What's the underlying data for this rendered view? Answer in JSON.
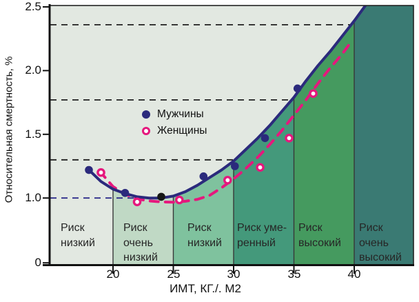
{
  "chart_data": {
    "type": "scatter",
    "title": "",
    "ylabel": "Относительная смертность, %",
    "xlabel": "ИМТ, КГ./. М2",
    "background_color": "#e2e8e1",
    "ylim": [
      0,
      2.5
    ],
    "xlim": [
      14.7,
      44.9
    ],
    "y_axis_break_below": 1.0,
    "y_ticks": [
      {
        "label": "2.5",
        "value": 2.5
      },
      {
        "label": "2.0",
        "value": 2.0
      },
      {
        "label": "1.5",
        "value": 1.5
      },
      {
        "label": "1.0",
        "value": 1.0
      },
      {
        "label": "0",
        "value": 0
      }
    ],
    "x_ticks": [
      {
        "label": "20",
        "value": 20
      },
      {
        "label": "25",
        "value": 25
      },
      {
        "label": "30",
        "value": 30
      },
      {
        "label": "35",
        "value": 35
      },
      {
        "label": "40",
        "value": 40
      }
    ],
    "dashed_gridlines": [
      {
        "value": 2.36,
        "color": "#1f1f1f"
      },
      {
        "value": 1.77,
        "color": "#1f1f1f"
      },
      {
        "value": 1.3,
        "color": "#1f1f1f"
      },
      {
        "value": 1.0,
        "color": "#2c2b8a"
      }
    ],
    "legend": [
      {
        "label": "Мужчины",
        "marker": "filled-circle"
      },
      {
        "label": "Женщины",
        "marker": "open-circle"
      }
    ],
    "series": [
      {
        "name": "Мужчины",
        "color": "#2b2a7c",
        "line_style": "solid",
        "marker": "filled-circle",
        "points": [
          [
            18,
            1.22
          ],
          [
            21,
            1.04
          ],
          [
            24,
            1.01
          ],
          [
            27.5,
            1.17
          ],
          [
            30.1,
            1.25
          ],
          [
            32.6,
            1.47
          ],
          [
            35.3,
            1.86
          ]
        ],
        "point_colors": {
          "2": "#161616"
        },
        "curve": [
          [
            17.9,
            1.23
          ],
          [
            19,
            1.13
          ],
          [
            20,
            1.07
          ],
          [
            21,
            1.035
          ],
          [
            22,
            1.01
          ],
          [
            23,
            1.0
          ],
          [
            24,
            1.0
          ],
          [
            25,
            1.015
          ],
          [
            26,
            1.05
          ],
          [
            27,
            1.1
          ],
          [
            28,
            1.16
          ],
          [
            29,
            1.22
          ],
          [
            30,
            1.29
          ],
          [
            31,
            1.38
          ],
          [
            32,
            1.47
          ],
          [
            33,
            1.57
          ],
          [
            34,
            1.68
          ],
          [
            35,
            1.79
          ],
          [
            36,
            1.92
          ],
          [
            37,
            2.04
          ],
          [
            38,
            2.15
          ],
          [
            39,
            2.27
          ],
          [
            40,
            2.39
          ],
          [
            41,
            2.52
          ]
        ]
      },
      {
        "name": "Женщины",
        "color": "#e5187d",
        "line_style": "dashed",
        "marker": "open-circle",
        "points": [
          [
            19,
            1.2
          ],
          [
            22,
            0.94
          ],
          [
            25.5,
            0.97
          ],
          [
            29.5,
            1.14
          ],
          [
            32.2,
            1.24
          ],
          [
            34.6,
            1.47
          ],
          [
            36.6,
            1.82
          ]
        ],
        "curve": [
          [
            18.9,
            1.21
          ],
          [
            20,
            1.09
          ],
          [
            21,
            1.03
          ],
          [
            22,
            0.985
          ],
          [
            23,
            0.955
          ],
          [
            24,
            0.94
          ],
          [
            25,
            0.935
          ],
          [
            26,
            0.95
          ],
          [
            27,
            0.98
          ],
          [
            28,
            1.02
          ],
          [
            29,
            1.08
          ],
          [
            30,
            1.15
          ],
          [
            31,
            1.23
          ],
          [
            32,
            1.32
          ],
          [
            33,
            1.42
          ],
          [
            34,
            1.53
          ],
          [
            35,
            1.65
          ],
          [
            36,
            1.77
          ],
          [
            37,
            1.9
          ],
          [
            38,
            2.02
          ],
          [
            39,
            2.13
          ],
          [
            39.7,
            2.22
          ]
        ]
      }
    ],
    "zones": [
      {
        "from": null,
        "to": 20,
        "color": "#e2e8e1",
        "lines": [
          "Риск",
          "низкий"
        ]
      },
      {
        "from": 20,
        "to": 25,
        "color": "#c0d9c5",
        "lines": [
          "Риск",
          "очень",
          "низкий"
        ]
      },
      {
        "from": 25,
        "to": 30,
        "color": "#7fc29e",
        "lines": [
          "Риск",
          "низкий"
        ]
      },
      {
        "from": 30,
        "to": 35,
        "color": "#44997b",
        "lines": [
          "Риск уме-",
          "ренный"
        ]
      },
      {
        "from": 35,
        "to": 40,
        "color": "#459a5f",
        "lines": [
          "Риск",
          "высокий"
        ]
      },
      {
        "from": 40,
        "to": null,
        "color": "#3a7a73",
        "lines": [
          "Риск",
          "очень",
          "высокий"
        ]
      }
    ]
  }
}
